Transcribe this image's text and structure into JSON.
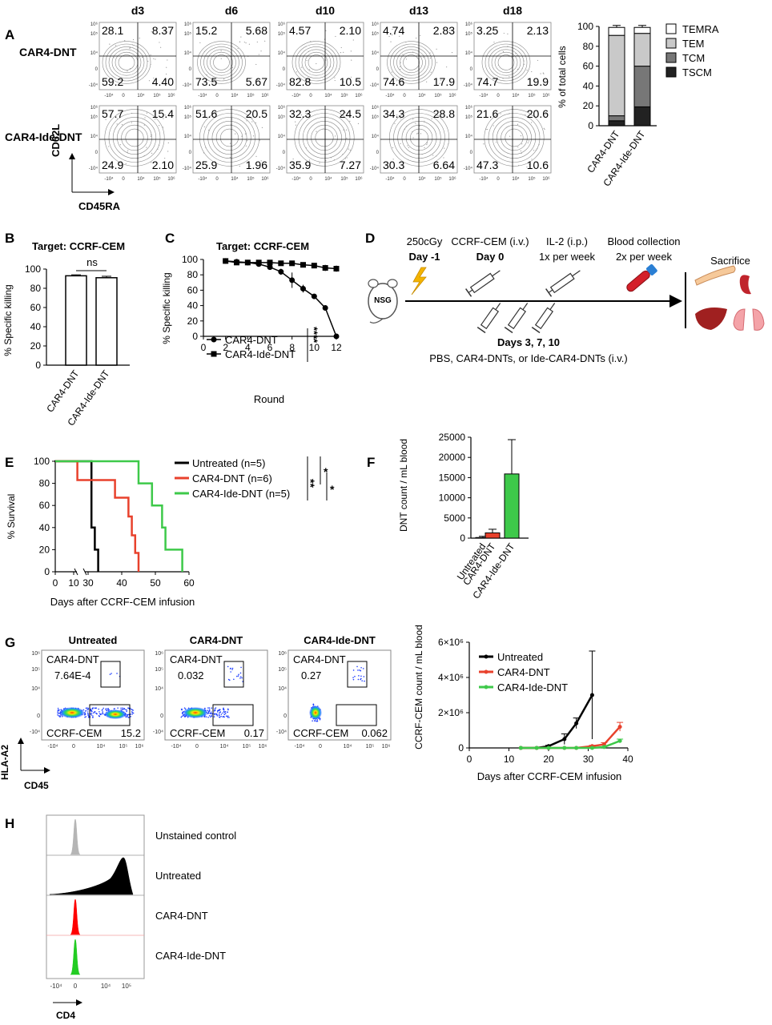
{
  "panel_a": {
    "letter": "A",
    "days": [
      "d3",
      "d6",
      "d10",
      "d13",
      "d18"
    ],
    "rows": [
      {
        "name": "CAR4-DNT",
        "quadrants": [
          [
            "28.1",
            "8.37",
            "59.2",
            "4.40"
          ],
          [
            "15.2",
            "5.68",
            "73.5",
            "5.67"
          ],
          [
            "4.57",
            "2.10",
            "82.8",
            "10.5"
          ],
          [
            "4.74",
            "2.83",
            "74.6",
            "17.9"
          ],
          [
            "3.25",
            "2.13",
            "74.7",
            "19.9"
          ]
        ]
      },
      {
        "name": "CAR4-Ide-DNT",
        "quadrants": [
          [
            "57.7",
            "15.4",
            "24.9",
            "2.10"
          ],
          [
            "51.6",
            "20.5",
            "25.9",
            "1.96"
          ],
          [
            "32.3",
            "24.5",
            "35.9",
            "7.27"
          ],
          [
            "34.3",
            "28.8",
            "30.3",
            "6.64"
          ],
          [
            "21.6",
            "20.6",
            "47.3",
            "10.6"
          ]
        ]
      }
    ],
    "y_axis": "CD62L",
    "x_axis": "CD45RA",
    "y_ticks": [
      "10⁶",
      "10⁵",
      "10⁴",
      "0",
      "-10⁴"
    ],
    "x_ticks": [
      "-10⁴",
      "0",
      "10⁴",
      "10⁵",
      "10⁶"
    ]
  },
  "chart_data": [
    {
      "id": "A-bar",
      "type": "bar",
      "stacked": true,
      "categories": [
        "CAR4-DNT",
        "CAR4-Ide-DNT"
      ],
      "ylabel": "% of total cells",
      "ylim": [
        0,
        100
      ],
      "yticks": [
        0,
        20,
        40,
        60,
        80,
        100
      ],
      "series": [
        {
          "name": "TSCM",
          "values": [
            5,
            19
          ],
          "err": [
            1,
            8
          ],
          "color": "#222222"
        },
        {
          "name": "TCM",
          "values": [
            5,
            41
          ],
          "err": [
            10,
            14
          ],
          "color": "#777777"
        },
        {
          "name": "TEM",
          "values": [
            81,
            33
          ],
          "err": [
            4,
            0
          ],
          "color": "#c9c9c9"
        },
        {
          "name": "TEMRA",
          "values": [
            8,
            6
          ],
          "err": [
            2,
            2
          ],
          "color": "#ffffff"
        }
      ],
      "legend_order": [
        "TEMRA",
        "TEM",
        "TCM",
        "TSCM"
      ]
    },
    {
      "id": "B",
      "type": "bar",
      "title": "Target: CCRF-CEM",
      "categories": [
        "CAR4-DNT",
        "CAR4-Ide-DNT"
      ],
      "values": [
        93,
        91
      ],
      "err": [
        1,
        1.5
      ],
      "ylabel": "% Specific killing",
      "ylim": [
        0,
        100
      ],
      "yticks": [
        0,
        20,
        40,
        60,
        80,
        100
      ],
      "annotation": "ns"
    },
    {
      "id": "C",
      "type": "line",
      "title": "Target: CCRF-CEM",
      "xlabel": "Round",
      "ylabel": "% Specific killing",
      "xlim": [
        0,
        12
      ],
      "ylim": [
        0,
        100
      ],
      "xticks": [
        0,
        2,
        4,
        6,
        8,
        10,
        12
      ],
      "yticks": [
        0,
        20,
        40,
        60,
        80,
        100
      ],
      "series": [
        {
          "name": "CAR4-DNT",
          "marker": "circle",
          "x": [
            2,
            3,
            4,
            5,
            6,
            7,
            8,
            9,
            10,
            11,
            12
          ],
          "y": [
            98,
            97,
            96,
            94,
            90,
            84,
            73,
            62,
            52,
            37,
            0
          ],
          "err": [
            3,
            2,
            2,
            2,
            3,
            4,
            10,
            5,
            2,
            3,
            1
          ]
        },
        {
          "name": "CAR4-Ide-DNT",
          "marker": "square",
          "x": [
            2,
            3,
            4,
            5,
            6,
            7,
            8,
            9,
            10,
            11,
            12
          ],
          "y": [
            98,
            96,
            96,
            96,
            96,
            95,
            95,
            93,
            92,
            89,
            88
          ],
          "err": [
            2,
            2,
            2,
            2,
            2,
            2,
            3,
            3,
            3,
            4,
            4
          ]
        }
      ],
      "significance": "****"
    },
    {
      "id": "E",
      "type": "line",
      "xlabel": "Days after CCRF-CEM infusion",
      "ylabel": "% Survival",
      "ylim": [
        0,
        100
      ],
      "yticks": [
        0,
        20,
        40,
        60,
        80,
        100
      ],
      "xticks": [
        "0",
        "10",
        "30",
        "40",
        "50",
        "60"
      ],
      "series": [
        {
          "name": "Untreated (n=5)",
          "color": "#000000",
          "steps": [
            [
              0,
              100
            ],
            [
              20,
              100
            ],
            [
              31,
              100
            ],
            [
              31,
              80
            ],
            [
              31,
              40
            ],
            [
              32,
              40
            ],
            [
              32,
              20
            ],
            [
              33,
              20
            ],
            [
              33,
              0
            ]
          ]
        },
        {
          "name": "CAR4-DNT (n=6)",
          "color": "#e8412c",
          "steps": [
            [
              0,
              100
            ],
            [
              12,
              100
            ],
            [
              12,
              83
            ],
            [
              30,
              83
            ],
            [
              30,
              83
            ],
            [
              38,
              83
            ],
            [
              38,
              67
            ],
            [
              42,
              67
            ],
            [
              42,
              50
            ],
            [
              43,
              50
            ],
            [
              43,
              33
            ],
            [
              44,
              33
            ],
            [
              44,
              17
            ],
            [
              45,
              17
            ],
            [
              45,
              0
            ]
          ]
        },
        {
          "name": "CAR4-Ide-DNT (n=5)",
          "color": "#3ec94a",
          "steps": [
            [
              0,
              100
            ],
            [
              45,
              100
            ],
            [
              45,
              80
            ],
            [
              49,
              80
            ],
            [
              49,
              60
            ],
            [
              52,
              60
            ],
            [
              52,
              40
            ],
            [
              53,
              40
            ],
            [
              53,
              20
            ],
            [
              58,
              20
            ],
            [
              58,
              0
            ]
          ]
        }
      ],
      "significance": [
        "**",
        "*",
        "*"
      ]
    },
    {
      "id": "F",
      "type": "bar",
      "categories": [
        "Untreated",
        "CAR4-DNT",
        "CAR4-Ide-DNT"
      ],
      "values": [
        150,
        1300,
        15900
      ],
      "err": [
        300,
        900,
        8500
      ],
      "colors": [
        "#000000",
        "#e8412c",
        "#3ec94a"
      ],
      "ylabel": "DNT count / mL blood",
      "ylim": [
        0,
        25000
      ],
      "yticks": [
        0,
        5000,
        10000,
        15000,
        20000,
        25000
      ]
    },
    {
      "id": "G-line",
      "type": "line",
      "xlabel": "Days after CCRF-CEM infusion",
      "ylabel": "CCRF-CEM count / mL blood",
      "xlim": [
        0,
        40
      ],
      "ylim": [
        0,
        6000000
      ],
      "xticks": [
        0,
        10,
        20,
        30,
        40
      ],
      "yticks": [
        "0",
        "2×10⁶",
        "4×10⁶",
        "6×10⁶"
      ],
      "series": [
        {
          "name": "Untreated",
          "color": "#000000",
          "x": [
            13,
            17,
            20,
            24,
            27,
            31
          ],
          "y": [
            0,
            0,
            100000,
            500000,
            1400000,
            3000000
          ],
          "err": [
            0,
            0,
            50000,
            300000,
            300000,
            2500000
          ]
        },
        {
          "name": "CAR4-DNT",
          "color": "#e8412c",
          "x": [
            13,
            17,
            20,
            24,
            27,
            31,
            34,
            38
          ],
          "y": [
            0,
            0,
            0,
            0,
            0,
            100000,
            200000,
            1200000
          ],
          "err": [
            0,
            0,
            0,
            0,
            0,
            50000,
            100000,
            250000
          ]
        },
        {
          "name": "CAR4-Ide-DNT",
          "color": "#3ec94a",
          "x": [
            13,
            17,
            20,
            24,
            27,
            31,
            34,
            38
          ],
          "y": [
            0,
            0,
            0,
            0,
            0,
            0,
            50000,
            400000
          ],
          "err": [
            0,
            0,
            0,
            0,
            0,
            0,
            20000,
            100000
          ]
        }
      ]
    }
  ],
  "panel_d": {
    "letter": "D",
    "mouse": "NSG",
    "steps": [
      {
        "top": "250cGy",
        "bottom": "Day -1"
      },
      {
        "top": "CCRF-CEM (i.v.)",
        "bottom": "Day 0"
      },
      {
        "top": "IL-2 (i.p.)",
        "bottom": "1x per week"
      },
      {
        "top": "Blood collection",
        "bottom": "2x per week"
      }
    ],
    "end": "Sacrifice",
    "days_label": "Days 3, 7, 10",
    "treatment": "PBS, CAR4-DNTs, or Ide-CAR4-DNTs (i.v.)"
  },
  "panel_g": {
    "letter": "G",
    "plots": [
      {
        "title": "Untreated",
        "dnt_label": "CAR4-DNT",
        "dnt_val": "7.64E-4",
        "cem_label": "CCRF-CEM",
        "cem_val": "15.2"
      },
      {
        "title": "CAR4-DNT",
        "dnt_label": "CAR4-DNT",
        "dnt_val": "0.032",
        "cem_label": "CCRF-CEM",
        "cem_val": "0.17"
      },
      {
        "title": "CAR4-Ide-DNT",
        "dnt_label": "CAR4-DNT",
        "dnt_val": "0.27",
        "cem_label": "CCRF-CEM",
        "cem_val": "0.062"
      }
    ],
    "y_axis": "HLA-A2",
    "x_axis": "CD45",
    "y_ticks": [
      "10⁶",
      "10⁵",
      "10⁴",
      "0",
      "-10⁴"
    ],
    "x_ticks": [
      "-10⁴",
      "0",
      "10⁴",
      "10⁵",
      "10⁶"
    ]
  },
  "panel_h": {
    "letter": "H",
    "rows": [
      {
        "name": "Unstained control",
        "color": "#b5b5b5"
      },
      {
        "name": "Untreated",
        "color": "#000000"
      },
      {
        "name": "CAR4-DNT",
        "color": "#ff0000"
      },
      {
        "name": "CAR4-Ide-DNT",
        "color": "#22cc22"
      }
    ],
    "x_axis": "CD4",
    "x_ticks": [
      "-10⁴",
      "0",
      "10⁴",
      "10⁵"
    ]
  },
  "letters": {
    "B": "B",
    "C": "C",
    "E": "E",
    "F": "F"
  }
}
